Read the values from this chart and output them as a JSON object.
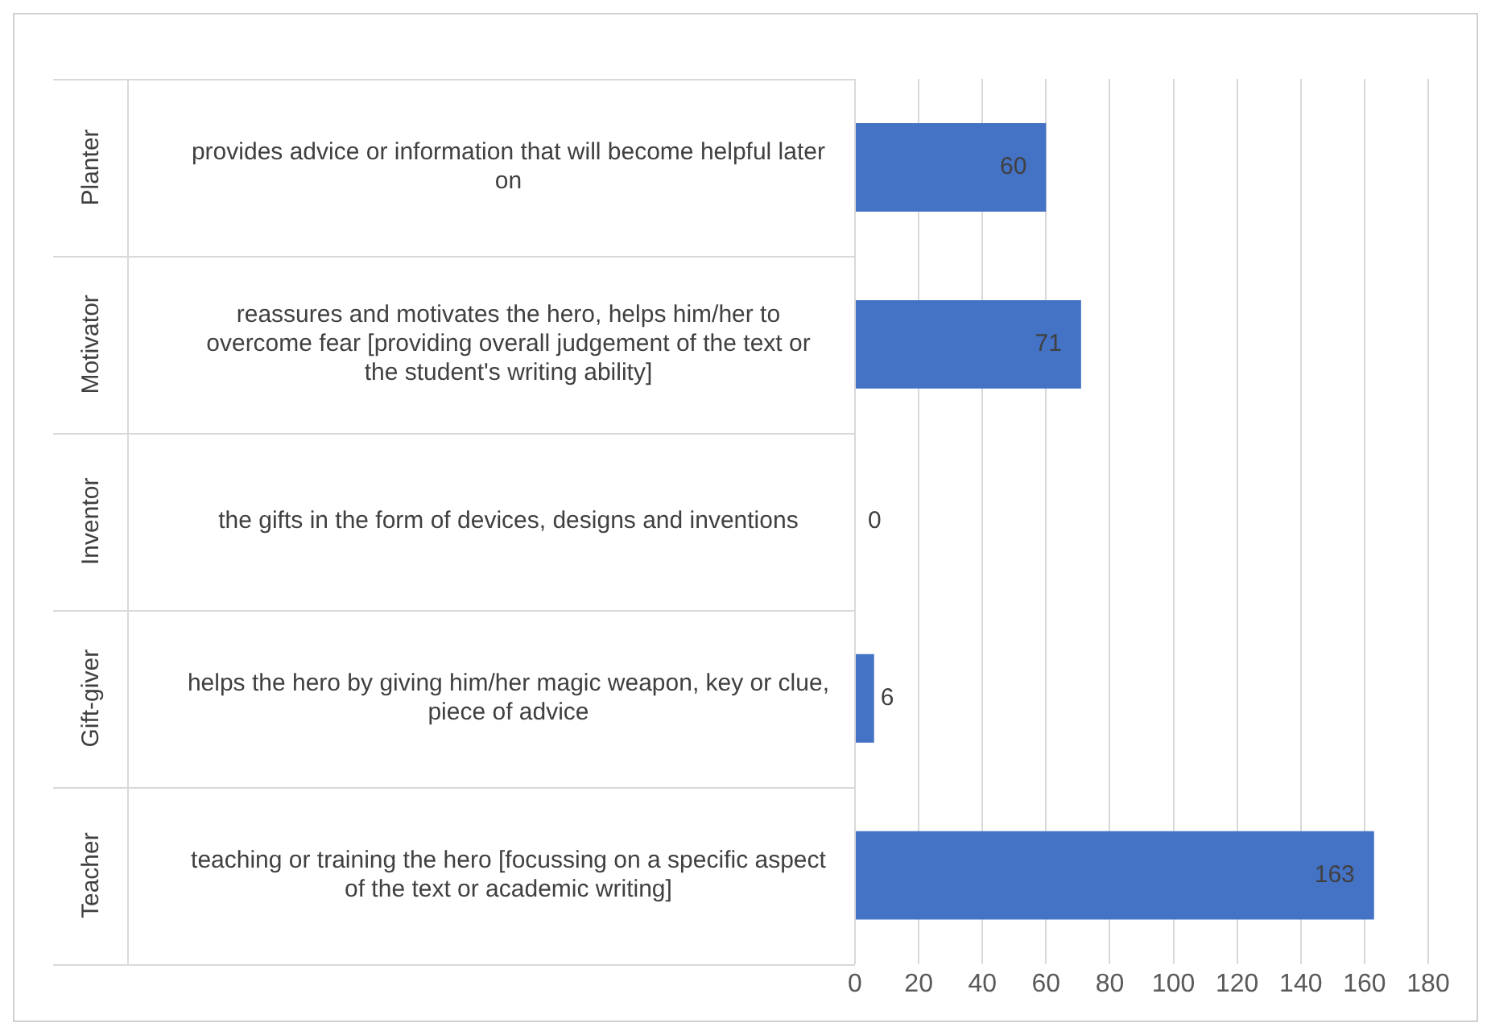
{
  "chart_data": {
    "type": "bar",
    "orientation": "horizontal",
    "categories": [
      "provides advice or information that will become helpful later on",
      "reassures and motivates the hero, helps him/her to overcome fear [providing overall judgement of the text or the student's writing ability]",
      "the gifts in the form of devices, designs and inventions",
      "helps the hero by giving him/her magic weapon, key or clue, piece of advice",
      "teaching or training the hero [focussing on a specific aspect of the text or academic writing]"
    ],
    "y2_categories": [
      "Planter",
      "Motivator",
      "Inventor",
      "Gift-giver",
      "Teacher"
    ],
    "values": [
      60,
      71,
      0,
      6,
      163
    ],
    "color": "#4472c4",
    "xlim": [
      0,
      180
    ],
    "xticks": [
      0,
      20,
      40,
      60,
      80,
      100,
      120,
      140,
      160,
      180
    ],
    "grid": "x",
    "legend": false,
    "data_labels": true
  }
}
